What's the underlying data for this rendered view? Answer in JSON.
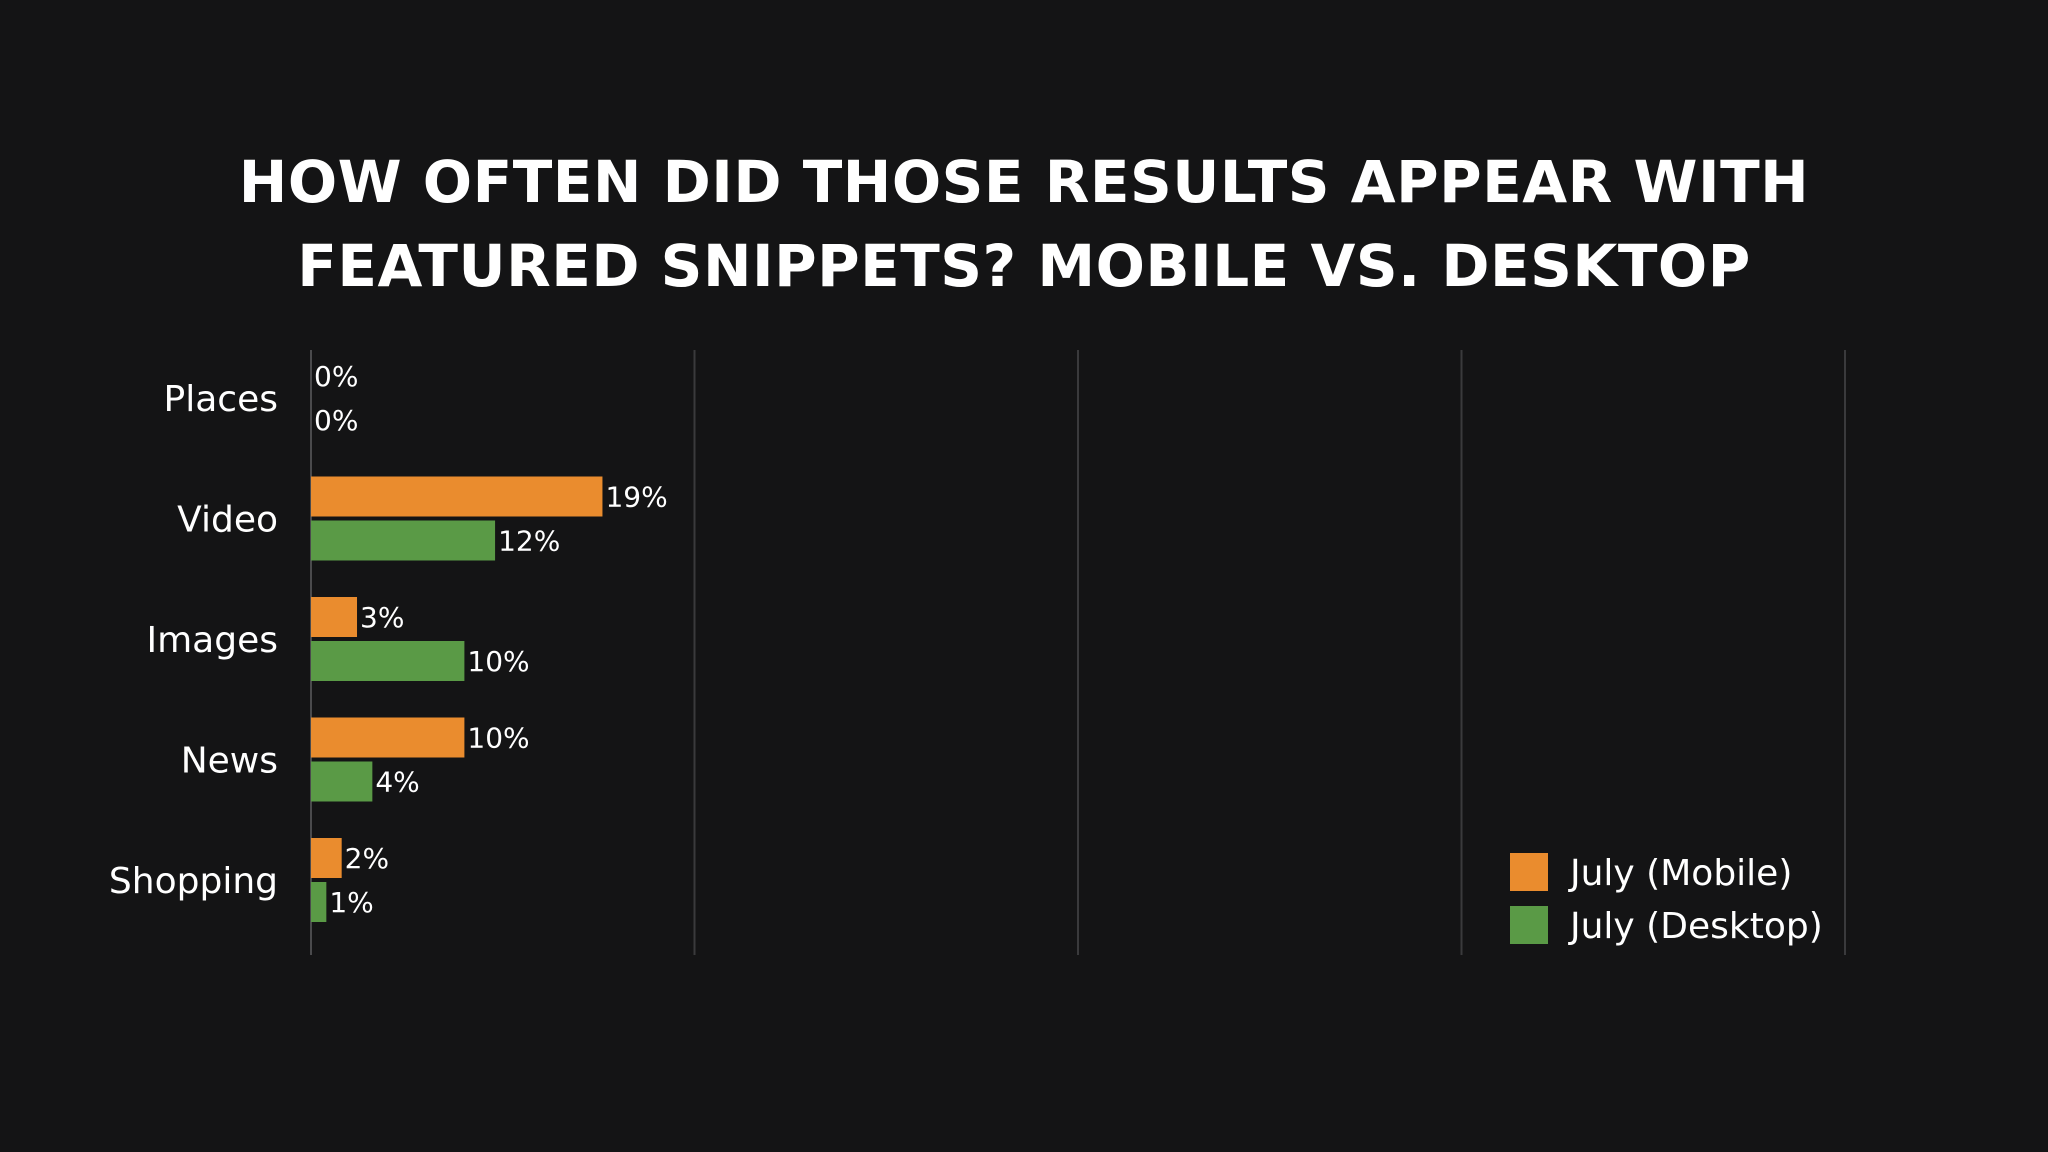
{
  "chart_data": {
    "type": "bar",
    "orientation": "horizontal",
    "title_lines": [
      "HOW OFTEN DID THOSE RESULTS APPEAR WITH",
      "FEATURED SNIPPETS? MOBILE VS. DESKTOP"
    ],
    "categories": [
      "Places",
      "Video",
      "Images",
      "News",
      "Shopping"
    ],
    "series": [
      {
        "name": "July (Mobile)",
        "color": "#ea8c2e",
        "values": [
          0,
          19,
          3,
          10,
          2
        ],
        "labels": [
          "0%",
          "19%",
          "3%",
          "10%",
          "2%"
        ]
      },
      {
        "name": "July (Desktop)",
        "color": "#5a9a46",
        "values": [
          0,
          12,
          10,
          4,
          1
        ],
        "labels": [
          "0%",
          "12%",
          "10%",
          "4%",
          "1%"
        ]
      }
    ],
    "xlim": [
      0,
      100
    ],
    "grid": true,
    "legend_position": "bottom-right"
  }
}
